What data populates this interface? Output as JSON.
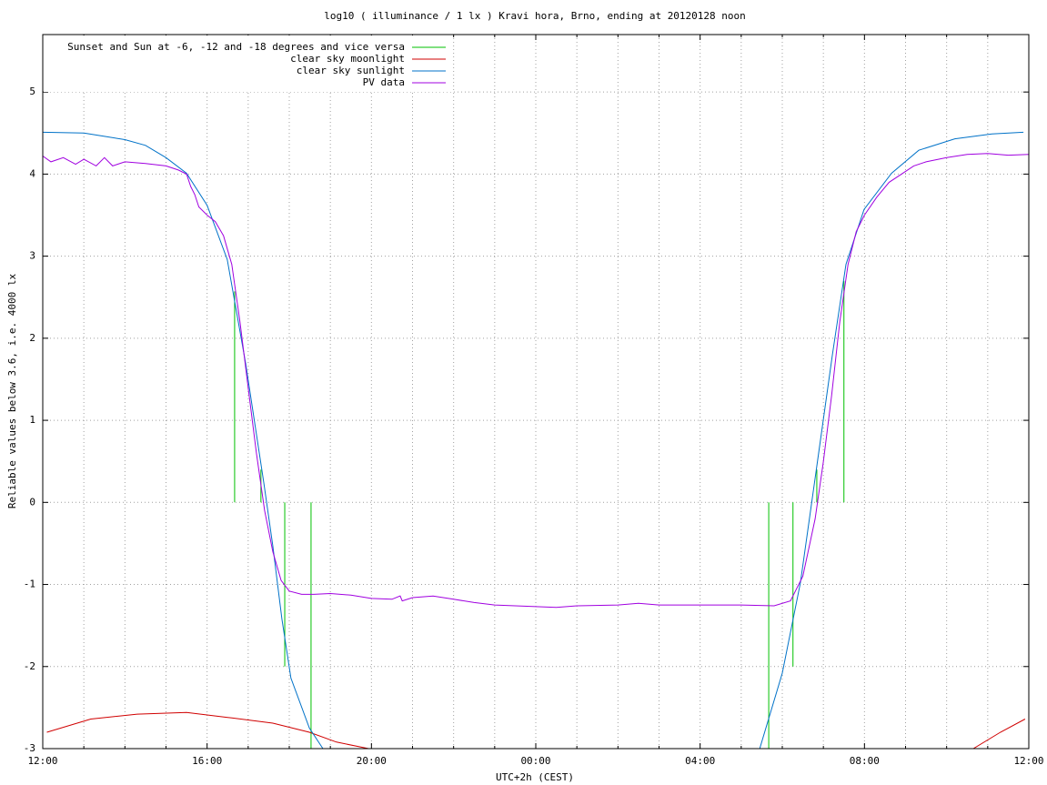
{
  "chart_data": {
    "type": "line",
    "title": "log10 ( illuminance / 1 lx ) Kravi hora, Brno, ending at 20120128 noon",
    "xlabel": "UTC+2h (CEST)",
    "ylabel": "Reliable values below 3.6, i.e. 4000 lx",
    "xlim": [
      0,
      24
    ],
    "ylim": [
      -3,
      5.7
    ],
    "xticks": [
      {
        "value": 0,
        "label": "12:00"
      },
      {
        "value": 4,
        "label": "16:00"
      },
      {
        "value": 8,
        "label": "20:00"
      },
      {
        "value": 12,
        "label": "00:00"
      },
      {
        "value": 16,
        "label": "04:00"
      },
      {
        "value": 20,
        "label": "08:00"
      },
      {
        "value": 24,
        "label": "12:00"
      }
    ],
    "minor_xticks": [
      1,
      2,
      3,
      5,
      6,
      7,
      9,
      10,
      11,
      13,
      14,
      15,
      17,
      18,
      19,
      21,
      22,
      23
    ],
    "yticks": [
      -3,
      -2,
      -1,
      0,
      1,
      2,
      3,
      4,
      5
    ],
    "grid": true,
    "legend": "top-left",
    "series": [
      {
        "name": "Sunset and Sun at -6, -12 and -18 degrees and vice versa",
        "color": "#00c000",
        "style": "impulses",
        "x": [
          4.67,
          5.31,
          5.89,
          6.53,
          17.67,
          18.26,
          18.84,
          19.5
        ],
        "values": [
          2.57,
          0.4,
          -2.0,
          -3,
          -3,
          -2.0,
          0.4,
          2.7
        ]
      },
      {
        "name": "clear sky moonlight",
        "color": "#d00000",
        "style": "line",
        "x": [
          0.1,
          1.17,
          2.3,
          3.5,
          4.5,
          5.6,
          6.49,
          7.15,
          7.93,
          12,
          22.65,
          23.31,
          23.91
        ],
        "values": [
          -2.8,
          -2.64,
          -2.58,
          -2.56,
          -2.62,
          -2.69,
          -2.8,
          -2.92,
          -3,
          null,
          -3,
          -2.8,
          -2.64
        ]
      },
      {
        "name": "clear sky sunlight",
        "color": "#0072c8",
        "style": "line",
        "x": [
          0,
          1.0,
          1.5,
          2.0,
          2.5,
          3.0,
          3.5,
          4.0,
          4.49,
          4.94,
          5.38,
          5.6,
          5.82,
          6.04,
          6.49,
          6.82,
          12,
          17.45,
          18.0,
          18.44,
          18.88,
          19.22,
          19.55,
          19.99,
          20.66,
          21.32,
          22.2,
          23.1,
          23.87
        ],
        "values": [
          4.51,
          4.5,
          4.46,
          4.42,
          4.35,
          4.2,
          4.01,
          3.62,
          2.96,
          1.69,
          0.24,
          -0.53,
          -1.42,
          -2.14,
          -2.75,
          -3,
          null,
          -3,
          -2.08,
          -0.98,
          0.58,
          1.8,
          2.9,
          3.57,
          4.01,
          4.29,
          4.43,
          4.49,
          4.51
        ]
      },
      {
        "name": "PV data",
        "color": "#a000e0",
        "style": "line",
        "x": [
          0,
          0.2,
          0.5,
          0.8,
          1.0,
          1.3,
          1.5,
          1.7,
          2.0,
          2.5,
          3.0,
          3.3,
          3.5,
          3.6,
          3.7,
          3.8,
          4.0,
          4.2,
          4.4,
          4.6,
          4.8,
          5.0,
          5.2,
          5.4,
          5.6,
          5.8,
          6.0,
          6.3,
          6.6,
          7.0,
          7.5,
          8.0,
          8.5,
          8.7,
          8.75,
          9.0,
          9.5,
          10.0,
          10.5,
          11.0,
          12.0,
          12.5,
          13.0,
          14.0,
          14.5,
          15.0,
          16.0,
          17.0,
          17.8,
          18.2,
          18.5,
          18.8,
          19.0,
          19.2,
          19.4,
          19.6,
          19.8,
          20.0,
          20.3,
          20.6,
          20.9,
          21.2,
          21.5,
          22.0,
          22.5,
          23.0,
          23.5,
          24.0
        ],
        "values": [
          4.22,
          4.15,
          4.2,
          4.12,
          4.18,
          4.1,
          4.2,
          4.1,
          4.15,
          4.13,
          4.1,
          4.05,
          4.0,
          3.85,
          3.75,
          3.6,
          3.5,
          3.42,
          3.25,
          2.9,
          2.2,
          1.4,
          0.6,
          -0.1,
          -0.6,
          -0.95,
          -1.08,
          -1.12,
          -1.12,
          -1.11,
          -1.13,
          -1.17,
          -1.18,
          -1.14,
          -1.2,
          -1.16,
          -1.14,
          -1.18,
          -1.22,
          -1.25,
          -1.27,
          -1.28,
          -1.26,
          -1.25,
          -1.23,
          -1.25,
          -1.25,
          -1.25,
          -1.26,
          -1.2,
          -0.9,
          -0.2,
          0.5,
          1.3,
          2.2,
          2.9,
          3.3,
          3.5,
          3.72,
          3.9,
          4.0,
          4.1,
          4.15,
          4.2,
          4.24,
          4.25,
          4.23,
          4.24
        ]
      }
    ]
  }
}
